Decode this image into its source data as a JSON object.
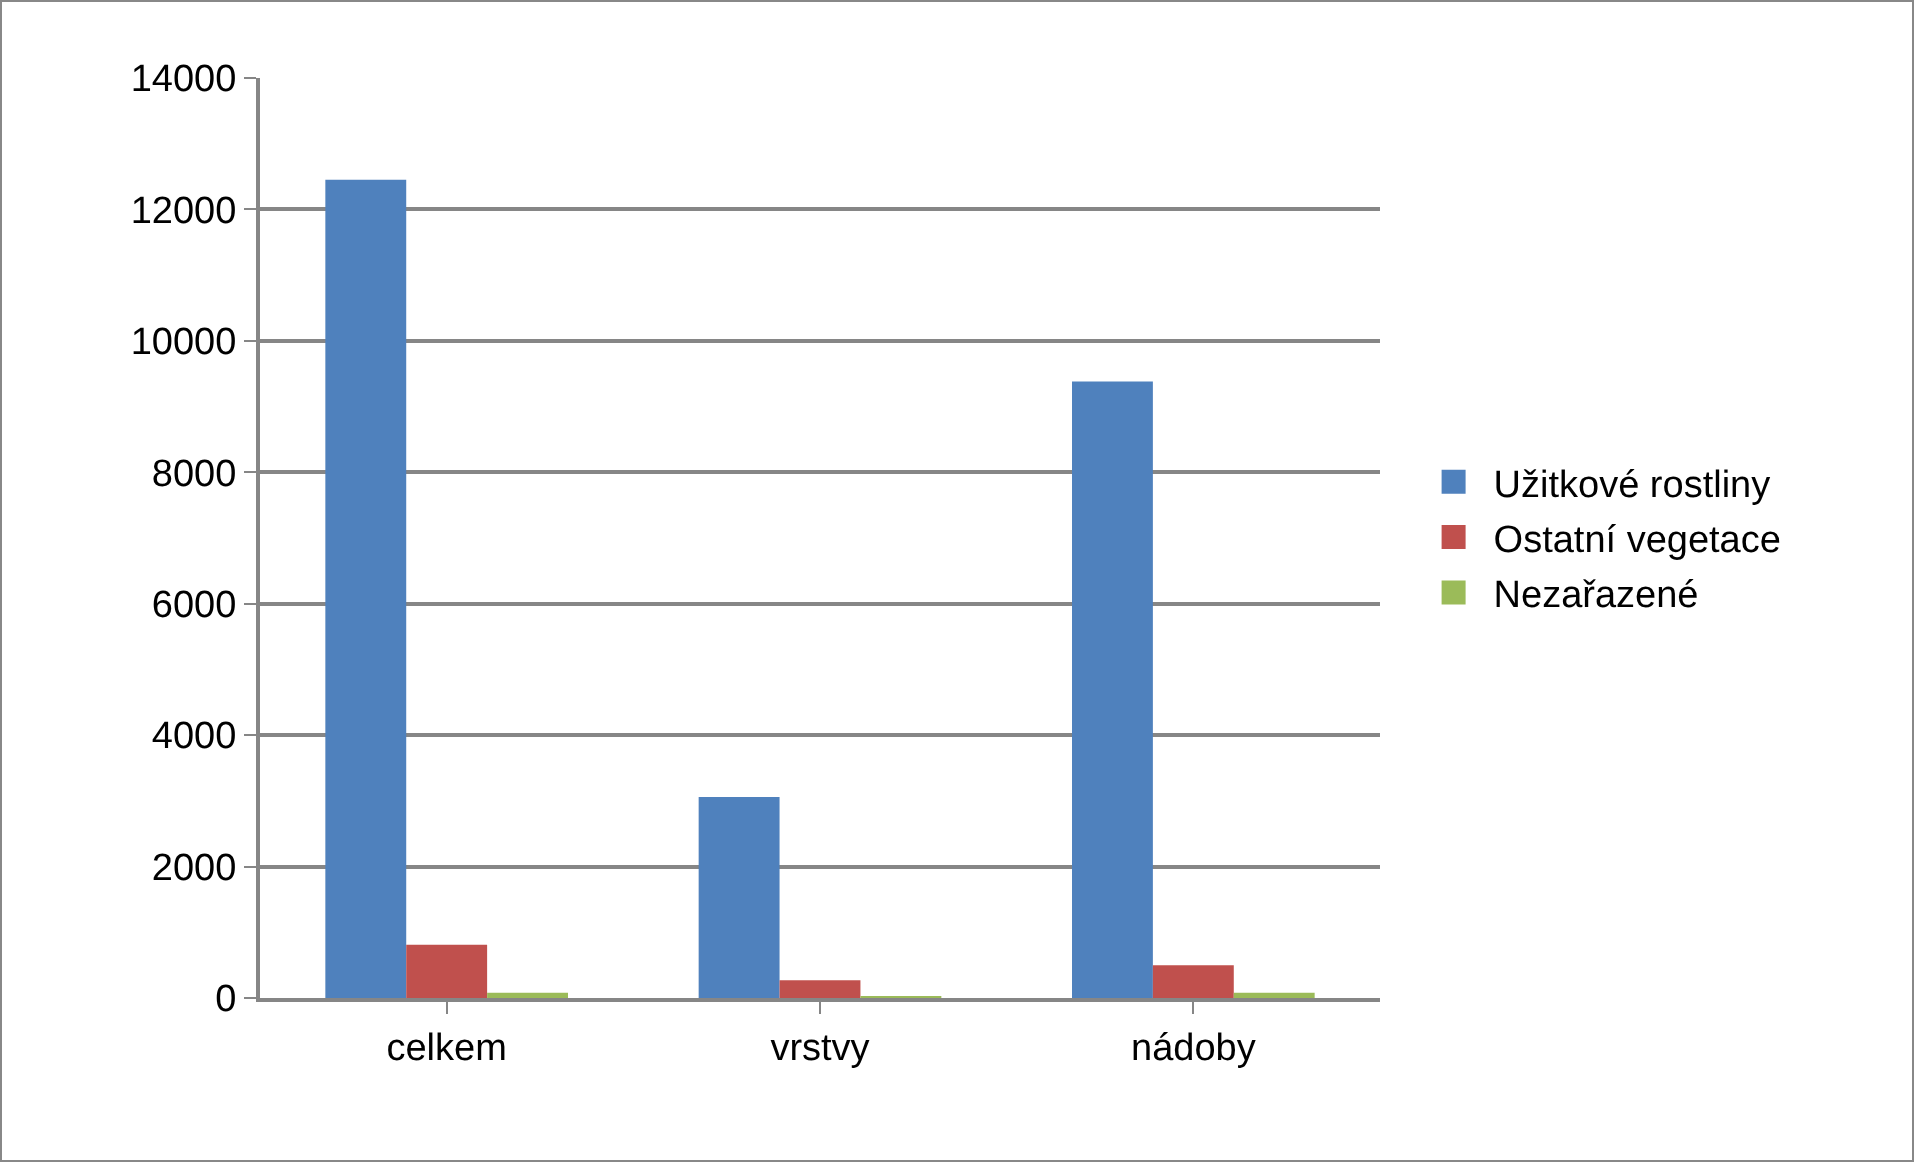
{
  "chart_data": {
    "type": "bar",
    "categories": [
      "celkem",
      "vrstvy",
      "nádoby"
    ],
    "series": [
      {
        "name": "Užitkové rostliny",
        "color": "#4f81bd",
        "values": [
          12450,
          3060,
          9380
        ]
      },
      {
        "name": "Ostatní vegetace",
        "color": "#c0504d",
        "values": [
          810,
          270,
          500
        ]
      },
      {
        "name": "Nezařazené",
        "color": "#9bbb59",
        "values": [
          80,
          10,
          80
        ]
      }
    ],
    "ylim": [
      0,
      14000
    ],
    "yticks": [
      0,
      2000,
      4000,
      6000,
      8000,
      10000,
      12000,
      14000
    ],
    "grid": "y",
    "legend": "right"
  }
}
